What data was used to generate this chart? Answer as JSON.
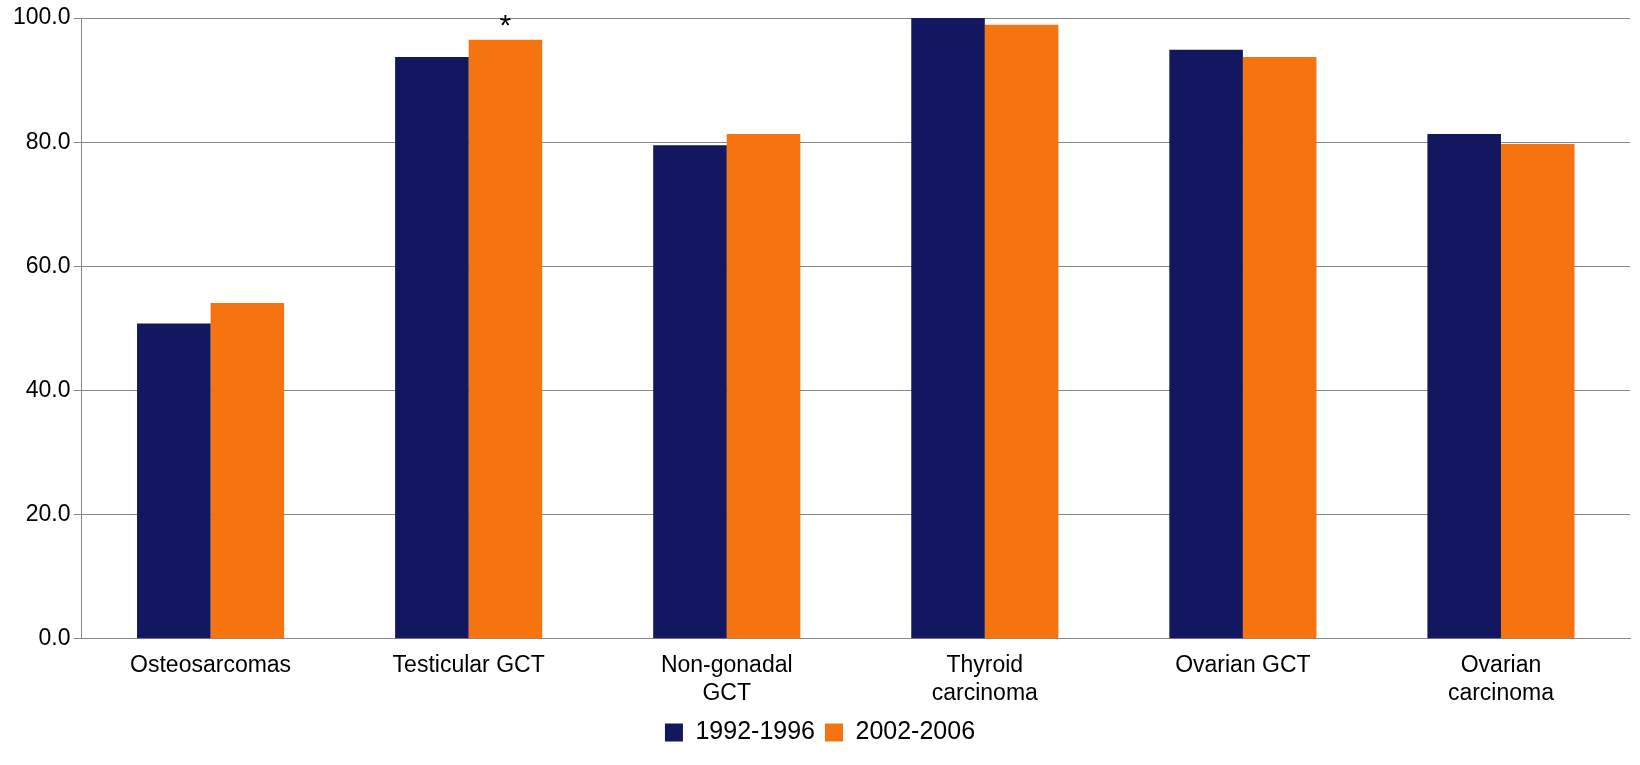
{
  "chart_data": {
    "type": "bar",
    "categories": [
      "Osteosarcomas",
      "Testicular GCT",
      "Non-gonadal GCT",
      "Thyroid carcinoma",
      "Ovarian GCT",
      "Ovarian carcinoma"
    ],
    "series": [
      {
        "name": "1992-1996",
        "color": "#121760",
        "values": [
          50.8,
          93.7,
          79.5,
          100,
          94.9,
          81.3
        ]
      },
      {
        "name": "2002-2006",
        "color": "#f5740f",
        "values": [
          54.1,
          96.5,
          81.3,
          98.9,
          93.7,
          79.7
        ]
      }
    ],
    "ylim": [
      0,
      100
    ],
    "yticks": [
      {
        "value": 0,
        "label": "0.0"
      },
      {
        "value": 20,
        "label": "20.0"
      },
      {
        "value": 40,
        "label": "40.0"
      },
      {
        "value": 60,
        "label": "60.0"
      },
      {
        "value": 80,
        "label": "80.0"
      },
      {
        "value": 100,
        "label": "100.0"
      }
    ],
    "grid": "y",
    "legend": "bottom",
    "annotations": [
      {
        "text": "*",
        "x": "Testicular GCT",
        "y": 96.5
      }
    ]
  }
}
